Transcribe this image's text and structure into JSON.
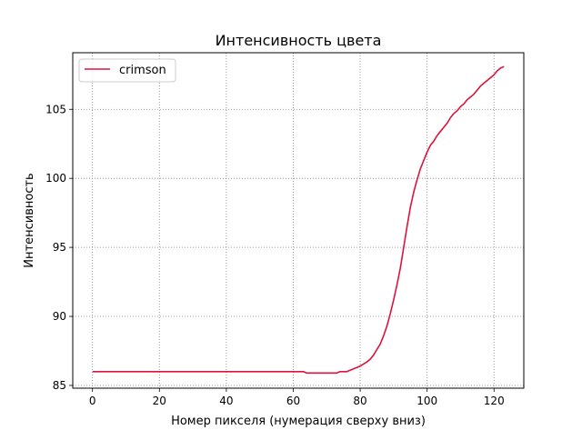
{
  "chart_data": {
    "type": "line",
    "title": "Интенсивность цвета",
    "xlabel": "Номер пикселя (нумерация сверху вниз)",
    "ylabel": "Интенсивность",
    "xlim": [
      -5.9,
      128.9
    ],
    "ylim": [
      84.8,
      109.1
    ],
    "xticks": [
      0,
      20,
      40,
      60,
      80,
      100,
      120
    ],
    "yticks": [
      85,
      90,
      95,
      100,
      105
    ],
    "grid": true,
    "legend": "top-left",
    "series": [
      {
        "name": "crimson",
        "color": "#dc143c",
        "points": [
          [
            0,
            86.0
          ],
          [
            10,
            86.0
          ],
          [
            20,
            86.0
          ],
          [
            30,
            86.0
          ],
          [
            40,
            86.0
          ],
          [
            50,
            86.0
          ],
          [
            60,
            86.0
          ],
          [
            63,
            86.0
          ],
          [
            64,
            85.9
          ],
          [
            66,
            85.9
          ],
          [
            70,
            85.9
          ],
          [
            73,
            85.9
          ],
          [
            74,
            86.0
          ],
          [
            76,
            86.0
          ],
          [
            78,
            86.2
          ],
          [
            80,
            86.4
          ],
          [
            82,
            86.7
          ],
          [
            83,
            86.9
          ],
          [
            84,
            87.2
          ],
          [
            85,
            87.6
          ],
          [
            86,
            88.0
          ],
          [
            87,
            88.6
          ],
          [
            88,
            89.3
          ],
          [
            89,
            90.2
          ],
          [
            90,
            91.2
          ],
          [
            91,
            92.3
          ],
          [
            92,
            93.5
          ],
          [
            93,
            95.0
          ],
          [
            94,
            96.5
          ],
          [
            95,
            97.9
          ],
          [
            96,
            99.0
          ],
          [
            97,
            99.9
          ],
          [
            98,
            100.7
          ],
          [
            99,
            101.3
          ],
          [
            100,
            101.9
          ],
          [
            101,
            102.4
          ],
          [
            102,
            102.7
          ],
          [
            103,
            103.1
          ],
          [
            104,
            103.4
          ],
          [
            105,
            103.7
          ],
          [
            106,
            104.0
          ],
          [
            107,
            104.4
          ],
          [
            108,
            104.7
          ],
          [
            109,
            104.9
          ],
          [
            110,
            105.2
          ],
          [
            111,
            105.4
          ],
          [
            112,
            105.7
          ],
          [
            113,
            105.9
          ],
          [
            114,
            106.1
          ],
          [
            115,
            106.4
          ],
          [
            116,
            106.7
          ],
          [
            117,
            106.9
          ],
          [
            118,
            107.1
          ],
          [
            119,
            107.3
          ],
          [
            120,
            107.5
          ],
          [
            121,
            107.8
          ],
          [
            122,
            108.0
          ],
          [
            123,
            108.1
          ]
        ]
      }
    ]
  }
}
